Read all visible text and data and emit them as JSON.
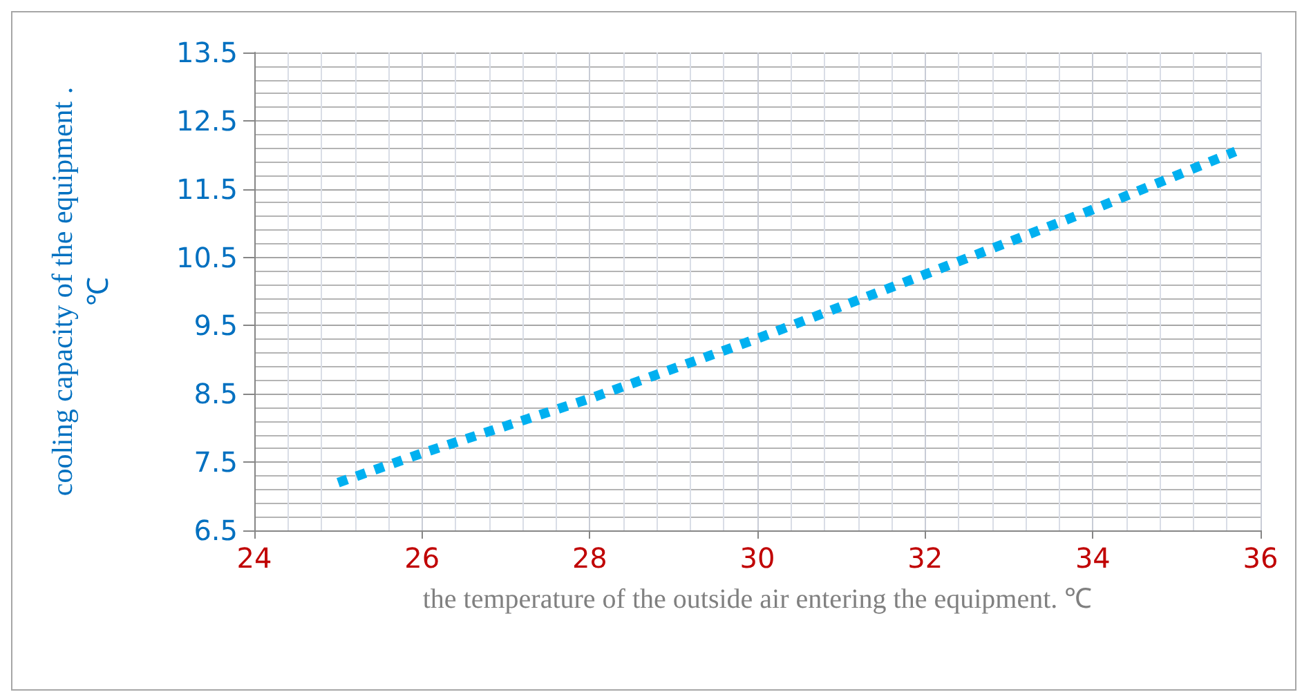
{
  "chart_data": {
    "type": "line",
    "xlabel": "the temperature of the outside air entering the equipment. ℃",
    "ylabel": "cooling capacity of the equipment .\n℃",
    "x": [
      25,
      26,
      28,
      30,
      32,
      34,
      35.7
    ],
    "series": [
      {
        "color": "#00b0f0",
        "values": [
          7.2,
          7.63,
          8.43,
          9.31,
          10.25,
          11.2,
          12.05
        ]
      }
    ],
    "xlim": [
      24,
      36
    ],
    "xticks": [
      24,
      26,
      28,
      30,
      32,
      34,
      36
    ],
    "ylim": [
      6.5,
      13.5
    ],
    "yticks": [
      6.5,
      7.5,
      8.5,
      9.5,
      10.5,
      11.5,
      12.5,
      13.5
    ],
    "grid": true,
    "marker": "none",
    "line_style": "dotted"
  }
}
